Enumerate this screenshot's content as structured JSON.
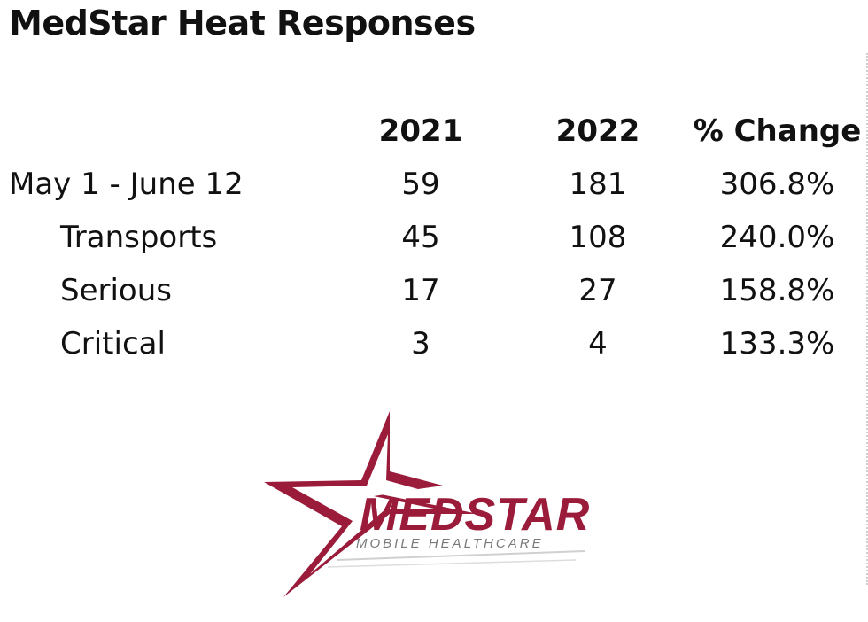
{
  "title": "MedStar Heat Responses",
  "table": {
    "columns": [
      "2021",
      "2022",
      "% Change"
    ],
    "rows": [
      {
        "label": "May 1 - June 12",
        "v2021": "59",
        "v2022": "181",
        "change": "306.8%"
      },
      {
        "label": "Transports",
        "v2021": "45",
        "v2022": "108",
        "change": "240.0%"
      },
      {
        "label": "Serious",
        "v2021": "17",
        "v2022": "27",
        "change": "158.8%"
      },
      {
        "label": "Critical",
        "v2021": "3",
        "v2022": "4",
        "change": "133.3%"
      }
    ]
  },
  "logo": {
    "wordmark": "MEDSTAR",
    "tagline": "MOBILE HEALTHCARE",
    "color": "#9b1b3a"
  }
}
